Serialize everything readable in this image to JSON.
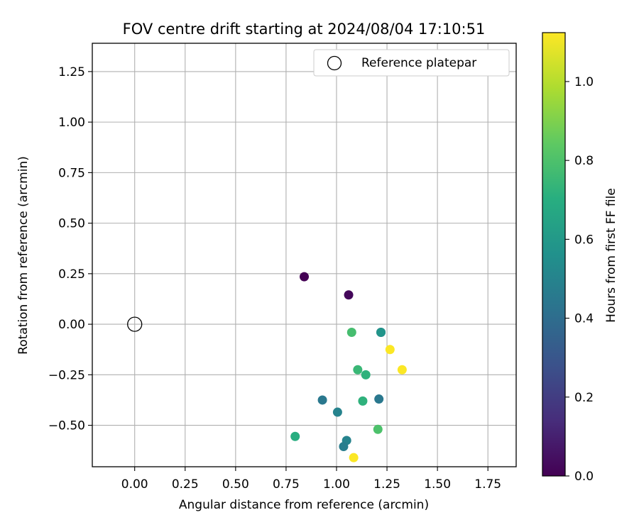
{
  "chart_data": {
    "type": "scatter",
    "title": "FOV centre drift starting at 2024/08/04 17:10:51",
    "xlabel": "Angular distance from reference (arcmin)",
    "ylabel": "Rotation from reference (arcmin)",
    "xlim": [
      -0.21,
      1.89
    ],
    "ylim": [
      -0.705,
      1.39
    ],
    "xticks": [
      0.0,
      0.25,
      0.5,
      0.75,
      1.0,
      1.25,
      1.5,
      1.75
    ],
    "xtick_labels": [
      "0.00",
      "0.25",
      "0.50",
      "0.75",
      "1.00",
      "1.25",
      "1.50",
      "1.75"
    ],
    "yticks": [
      -0.5,
      -0.25,
      0.0,
      0.25,
      0.5,
      0.75,
      1.0,
      1.25
    ],
    "ytick_labels": [
      "−0.50",
      "−0.25",
      "0.00",
      "0.25",
      "0.50",
      "0.75",
      "1.00",
      "1.25"
    ],
    "grid": true,
    "legend": {
      "position": "top-right",
      "entries": [
        {
          "label": "Reference platepar",
          "marker": "open-circle"
        }
      ]
    },
    "reference": {
      "x": 0.0,
      "y": 0.0
    },
    "colorbar": {
      "label": "Hours from first FF file",
      "colormap": "viridis",
      "range": [
        0.0,
        1.124
      ],
      "ticks": [
        0.0,
        0.2,
        0.4,
        0.6,
        0.8,
        1.0
      ],
      "tick_labels": [
        "0.0",
        "0.2",
        "0.4",
        "0.6",
        "0.8",
        "1.0"
      ]
    },
    "points": [
      {
        "x": 0.84,
        "y": 0.235,
        "hours": 0.0
      },
      {
        "x": 1.06,
        "y": 0.145,
        "hours": 0.02
      },
      {
        "x": 1.22,
        "y": -0.04,
        "hours": 0.25
      },
      {
        "x": 0.93,
        "y": -0.375,
        "hours": 0.45
      },
      {
        "x": 1.21,
        "y": -0.37,
        "hours": 0.45
      },
      {
        "x": 1.005,
        "y": -0.435,
        "hours": 0.5
      },
      {
        "x": 1.05,
        "y": -0.575,
        "hours": 0.5
      },
      {
        "x": 1.035,
        "y": -0.605,
        "hours": 0.47
      },
      {
        "x": 1.22,
        "y": -0.04,
        "hours": 0.58
      },
      {
        "x": 1.075,
        "y": -0.04,
        "hours": 0.78
      },
      {
        "x": 1.105,
        "y": -0.225,
        "hours": 0.75
      },
      {
        "x": 1.145,
        "y": -0.25,
        "hours": 0.72
      },
      {
        "x": 1.13,
        "y": -0.38,
        "hours": 0.72
      },
      {
        "x": 1.205,
        "y": -0.52,
        "hours": 0.8
      },
      {
        "x": 0.795,
        "y": -0.555,
        "hours": 0.7
      },
      {
        "x": 1.265,
        "y": -0.125,
        "hours": 1.12
      },
      {
        "x": 1.325,
        "y": -0.225,
        "hours": 1.12
      },
      {
        "x": 1.085,
        "y": -0.66,
        "hours": 1.12
      }
    ]
  }
}
